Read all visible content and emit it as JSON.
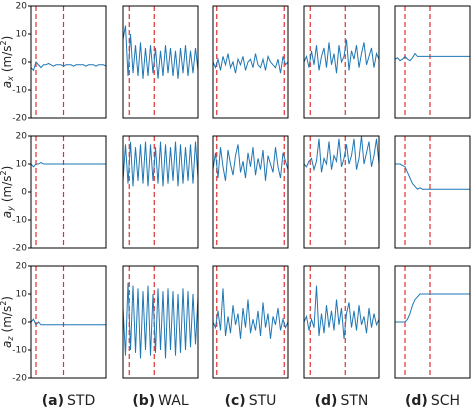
{
  "chart_data": [
    {
      "type": "line",
      "color": "#1f77b4",
      "xlim": [
        0,
        30
      ],
      "ylim": [
        -20,
        20
      ],
      "yticks": [
        -20,
        -10,
        0,
        10,
        20
      ],
      "vlines": [
        2,
        13
      ],
      "ylabel": {
        "base": "a",
        "sub": "x",
        "unit": "(m/s",
        "sup": "2",
        "end": ")"
      },
      "values": [
        -2,
        -3,
        0,
        -1,
        -2,
        -1,
        -1,
        -0.5,
        -1,
        -1.5,
        -1,
        -1,
        -1,
        -1.5,
        -1,
        -1,
        -1,
        -1.5,
        -1,
        -1,
        -1,
        -1,
        -1.5,
        -1,
        -1,
        -1,
        -1.5,
        -1,
        -1,
        -1,
        -1.5
      ]
    },
    {
      "type": "line",
      "color": "#1f77b4",
      "xlim": [
        0,
        30
      ],
      "ylim": [
        -20,
        20
      ],
      "vlines": [
        2.5,
        12.5
      ],
      "values": [
        8,
        13,
        -5,
        10,
        -4,
        6,
        -5,
        7,
        -6,
        5,
        -5,
        6,
        -4,
        5,
        -6,
        4,
        -5,
        6,
        -4,
        5,
        -5,
        4,
        -6,
        5,
        -4,
        6,
        -5,
        4,
        -4,
        5,
        -3
      ]
    },
    {
      "type": "line",
      "color": "#1f77b4",
      "xlim": [
        0,
        30
      ],
      "ylim": [
        -20,
        20
      ],
      "vlines": [
        1.5,
        28.5
      ],
      "values": [
        0,
        -2,
        1,
        -3,
        2,
        -1,
        3,
        -2,
        0,
        -4,
        1,
        -1,
        2,
        -3,
        0,
        1,
        -2,
        3,
        -1,
        -2,
        1,
        -3,
        2,
        0,
        -1,
        -2,
        1,
        -4,
        2,
        -1,
        0
      ]
    },
    {
      "type": "line",
      "color": "#1f77b4",
      "xlim": [
        0,
        30
      ],
      "ylim": [
        -20,
        20
      ],
      "vlines": [
        2.5,
        16.5
      ],
      "values": [
        0,
        2,
        -2,
        4,
        -1,
        6,
        -3,
        2,
        5,
        -2,
        7,
        -1,
        3,
        -4,
        6,
        0,
        2,
        8,
        -3,
        4,
        1,
        6,
        -2,
        3,
        7,
        -1,
        2,
        5,
        -2,
        3,
        1
      ]
    },
    {
      "type": "line",
      "color": "#1f77b4",
      "xlim": [
        0,
        30
      ],
      "ylim": [
        -20,
        20
      ],
      "vlines": [
        4,
        14
      ],
      "values": [
        1,
        1.5,
        0.5,
        1,
        2,
        1,
        0.5,
        1.5,
        3,
        2,
        2,
        2,
        2,
        2,
        2,
        2,
        2,
        2,
        2,
        2,
        2,
        2,
        2,
        2,
        2,
        2,
        2,
        2,
        2,
        2,
        2
      ]
    },
    {
      "type": "line",
      "color": "#1f77b4",
      "xlim": [
        0,
        30
      ],
      "ylim": [
        -20,
        20
      ],
      "yticks": [
        -20,
        -10,
        0,
        10,
        20
      ],
      "vlines": [
        2,
        13
      ],
      "ylabel": {
        "base": "a",
        "sub": "y",
        "unit": "(m/s",
        "sup": "2",
        "end": ")"
      },
      "values": [
        10,
        9,
        10,
        10,
        10.5,
        10,
        10,
        10,
        10,
        10,
        10,
        10,
        10,
        10,
        10,
        10,
        10,
        10,
        10,
        10,
        10,
        10,
        10,
        10,
        10,
        10,
        10,
        10,
        10,
        10,
        10
      ]
    },
    {
      "type": "line",
      "color": "#1f77b4",
      "xlim": [
        0,
        30
      ],
      "ylim": [
        -20,
        20
      ],
      "vlines": [
        2.5,
        12.5
      ],
      "values": [
        4,
        17,
        3,
        18,
        2,
        16,
        4,
        17,
        3,
        18,
        2,
        17,
        4,
        16,
        3,
        18,
        2,
        17,
        3,
        16,
        4,
        18,
        2,
        17,
        3,
        16,
        4,
        17,
        3,
        18,
        5
      ]
    },
    {
      "type": "line",
      "color": "#1f77b4",
      "xlim": [
        0,
        30
      ],
      "ylim": [
        -20,
        20
      ],
      "vlines": [
        1.5,
        28.5
      ],
      "values": [
        8,
        14,
        5,
        16,
        9,
        4,
        15,
        10,
        6,
        13,
        17,
        7,
        11,
        5,
        14,
        9,
        16,
        6,
        12,
        8,
        15,
        4,
        13,
        10,
        7,
        16,
        9,
        5,
        14,
        11,
        8
      ]
    },
    {
      "type": "line",
      "color": "#1f77b4",
      "xlim": [
        0,
        30
      ],
      "ylim": [
        -20,
        20
      ],
      "vlines": [
        2.5,
        16.5
      ],
      "values": [
        10,
        9,
        11,
        12,
        8,
        11,
        19,
        7,
        12,
        10,
        18,
        8,
        13,
        11,
        19,
        9,
        12,
        17,
        10,
        13,
        19,
        8,
        12,
        20,
        10,
        14,
        18,
        9,
        13,
        19,
        10
      ]
    },
    {
      "type": "line",
      "color": "#1f77b4",
      "xlim": [
        0,
        30
      ],
      "ylim": [
        -20,
        20
      ],
      "vlines": [
        4,
        14
      ],
      "values": [
        10,
        10,
        10,
        9.5,
        9,
        7,
        5,
        3,
        2,
        1,
        1.5,
        1,
        1,
        1,
        1,
        1,
        1,
        1,
        1,
        1,
        1,
        1,
        1,
        1,
        1,
        1,
        1,
        1,
        1,
        1,
        1
      ]
    },
    {
      "type": "line",
      "color": "#1f77b4",
      "xlim": [
        0,
        30
      ],
      "ylim": [
        -20,
        20
      ],
      "yticks": [
        -20,
        -10,
        0,
        10,
        20
      ],
      "vlines": [
        2,
        13
      ],
      "ylabel": {
        "base": "a",
        "sub": "z",
        "unit": "(m/s",
        "sup": "2",
        "end": ")"
      },
      "xlabel": {
        "tag": "(a)",
        "name": "STD"
      },
      "values": [
        0,
        1,
        -1,
        0,
        -1,
        -1,
        -1,
        -1,
        -1,
        -1,
        -1,
        -1,
        -1,
        -1,
        -1,
        -1,
        -1,
        -1,
        -1,
        -1,
        -1,
        -1,
        -1,
        -1,
        -1,
        -1,
        -1,
        -1,
        -1,
        -1,
        -1
      ]
    },
    {
      "type": "line",
      "color": "#1f77b4",
      "xlim": [
        0,
        30
      ],
      "ylim": [
        -20,
        20
      ],
      "vlines": [
        2.5,
        12.5
      ],
      "xlabel": {
        "tag": "(b)",
        "name": "WAL"
      },
      "values": [
        5,
        -12,
        14,
        -10,
        13,
        -11,
        12,
        -13,
        11,
        -10,
        13,
        -12,
        10,
        -11,
        12,
        -10,
        11,
        -13,
        12,
        -10,
        11,
        -12,
        10,
        -11,
        12,
        -10,
        11,
        -9,
        10,
        -8,
        9
      ]
    },
    {
      "type": "line",
      "color": "#1f77b4",
      "xlim": [
        0,
        30
      ],
      "ylim": [
        -20,
        20
      ],
      "vlines": [
        1.5,
        28.5
      ],
      "xlabel": {
        "tag": "(c)",
        "name": "STU"
      },
      "values": [
        0,
        -2,
        4,
        -3,
        12,
        -5,
        2,
        -4,
        6,
        -1,
        3,
        -6,
        5,
        -2,
        8,
        -4,
        1,
        -3,
        4,
        -5,
        7,
        -2,
        3,
        -6,
        2,
        -1,
        5,
        -3,
        1,
        -2,
        0
      ]
    },
    {
      "type": "line",
      "color": "#1f77b4",
      "xlim": [
        0,
        30
      ],
      "ylim": [
        -20,
        20
      ],
      "vlines": [
        2.5,
        16.5
      ],
      "xlabel": {
        "tag": "(d)",
        "name": "STN"
      },
      "values": [
        0,
        2,
        -3,
        1,
        -2,
        13,
        -5,
        3,
        -4,
        6,
        -2,
        4,
        -3,
        8,
        -1,
        5,
        -6,
        3,
        7,
        -2,
        4,
        -3,
        6,
        -1,
        2,
        -4,
        5,
        -2,
        3,
        -1,
        1
      ]
    },
    {
      "type": "line",
      "color": "#1f77b4",
      "xlim": [
        0,
        30
      ],
      "ylim": [
        -20,
        20
      ],
      "vlines": [
        4,
        14
      ],
      "xlabel": {
        "tag": "(d)",
        "name": "SCH"
      },
      "values": [
        0,
        0,
        0,
        0,
        0,
        1,
        3,
        6,
        8,
        9,
        10,
        10,
        10,
        10,
        10,
        10,
        10,
        10,
        10,
        10,
        10,
        10,
        10,
        10,
        10,
        10,
        10,
        10,
        10,
        10,
        10
      ]
    }
  ]
}
